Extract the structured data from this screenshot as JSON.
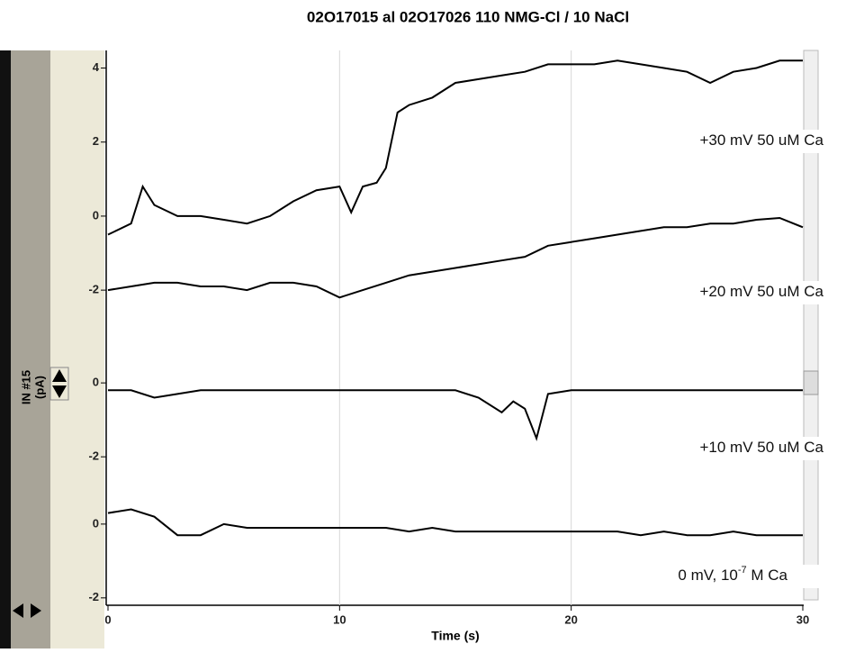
{
  "chart_data": [
    {
      "type": "line",
      "title": "02O17015 al 02O17026  110 NMG-Cl / 10 NaCl",
      "ylabel": [
        "IN #15",
        "(pA)"
      ],
      "xlim": [
        0,
        30
      ],
      "ylim": [
        -2.8,
        4.5
      ],
      "yticks": [
        4,
        2,
        0,
        -2
      ],
      "series": [
        {
          "name": "+30 mV 50 uM Ca",
          "color": "#000000",
          "x": [
            0,
            1,
            1.5,
            2,
            3,
            4,
            5,
            6,
            7,
            8,
            9,
            10,
            10.5,
            11,
            11.6,
            12,
            12.5,
            13,
            14,
            15,
            16,
            17,
            18,
            19,
            20,
            21,
            22,
            23,
            24,
            25,
            26,
            27,
            28,
            29,
            30
          ],
          "values": [
            -0.5,
            -0.2,
            0.8,
            0.3,
            0,
            0,
            -0.1,
            -0.2,
            0,
            0.4,
            0.7,
            0.8,
            0.1,
            0.8,
            0.9,
            1.3,
            2.8,
            3.0,
            3.2,
            3.6,
            3.7,
            3.8,
            3.9,
            4.1,
            4.1,
            4.1,
            4.2,
            4.1,
            4.0,
            3.9,
            3.6,
            3.9,
            4.0,
            4.2,
            4.2
          ]
        },
        {
          "name": "+20 mV 50 uM Ca",
          "color": "#000000",
          "x": [
            0,
            1,
            2,
            3,
            4,
            5,
            6,
            7,
            8,
            9,
            10,
            11,
            12,
            13,
            14,
            15,
            16,
            17,
            18,
            19,
            20,
            21,
            22,
            23,
            24,
            25,
            26,
            27,
            28,
            29,
            30
          ],
          "values": [
            -2.0,
            -1.9,
            -1.8,
            -1.8,
            -1.9,
            -1.9,
            -2.0,
            -1.8,
            -1.8,
            -1.9,
            -2.2,
            -2.0,
            -1.8,
            -1.6,
            -1.5,
            -1.4,
            -1.3,
            -1.2,
            -1.1,
            -0.8,
            -0.7,
            -0.6,
            -0.5,
            -0.4,
            -0.3,
            -0.3,
            -0.2,
            -0.2,
            -0.1,
            -0.05,
            -0.3
          ]
        }
      ]
    },
    {
      "type": "line",
      "xlim": [
        0,
        30
      ],
      "ylim": [
        -2.8,
        1.1
      ],
      "yticks": [
        0,
        -2
      ],
      "series": [
        {
          "name": "+10 mV 50 uM Ca",
          "color": "#000000",
          "x": [
            0,
            1,
            2,
            3,
            4,
            5,
            6,
            7,
            8,
            9,
            10,
            11,
            12,
            13,
            14,
            15,
            16,
            17,
            17.5,
            18,
            18.5,
            19,
            20,
            21,
            22,
            23,
            24,
            25,
            26,
            27,
            28,
            29,
            30
          ],
          "values": [
            -0.2,
            -0.2,
            -0.4,
            -0.3,
            -0.2,
            -0.2,
            -0.2,
            -0.2,
            -0.2,
            -0.2,
            -0.2,
            -0.2,
            -0.2,
            -0.2,
            -0.2,
            -0.2,
            -0.4,
            -0.8,
            -0.5,
            -0.7,
            -1.5,
            -0.3,
            -0.2,
            -0.2,
            -0.2,
            -0.2,
            -0.2,
            -0.2,
            -0.2,
            -0.2,
            -0.2,
            -0.2,
            -0.2
          ]
        }
      ]
    },
    {
      "type": "line",
      "xlim": [
        0,
        30
      ],
      "ylim": [
        -2.2,
        0.9
      ],
      "yticks": [
        0,
        -2
      ],
      "xlabel": "Time (s)",
      "xticks": [
        0,
        10,
        20,
        30
      ],
      "series": [
        {
          "name": "0 mV, 10",
          "name_sup": "-7",
          "name_after": " M Ca",
          "color": "#000000",
          "x": [
            0,
            1,
            2,
            3,
            4,
            5,
            6,
            7,
            8,
            9,
            10,
            11,
            12,
            13,
            14,
            15,
            16,
            17,
            18,
            19,
            20,
            21,
            22,
            23,
            24,
            25,
            26,
            27,
            28,
            29,
            30
          ],
          "values": [
            0.3,
            0.4,
            0.2,
            -0.3,
            -0.3,
            0,
            -0.1,
            -0.1,
            -0.1,
            -0.1,
            -0.1,
            -0.1,
            -0.1,
            -0.2,
            -0.1,
            -0.2,
            -0.2,
            -0.2,
            -0.2,
            -0.2,
            -0.2,
            -0.2,
            -0.2,
            -0.3,
            -0.2,
            -0.3,
            -0.3,
            -0.2,
            -0.3,
            -0.3,
            -0.3
          ]
        }
      ]
    }
  ]
}
